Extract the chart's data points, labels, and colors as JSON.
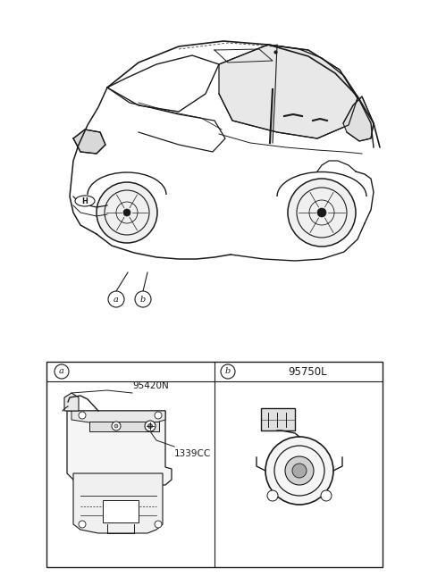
{
  "bg_color": "#ffffff",
  "line_color": "#1a1a1a",
  "figsize": [
    4.8,
    6.55
  ],
  "dpi": 100,
  "part_a_label1": "95420N",
  "part_a_label2": "1339CC",
  "part_b_label": "95750L",
  "car_label_a": "a",
  "car_label_b": "b"
}
